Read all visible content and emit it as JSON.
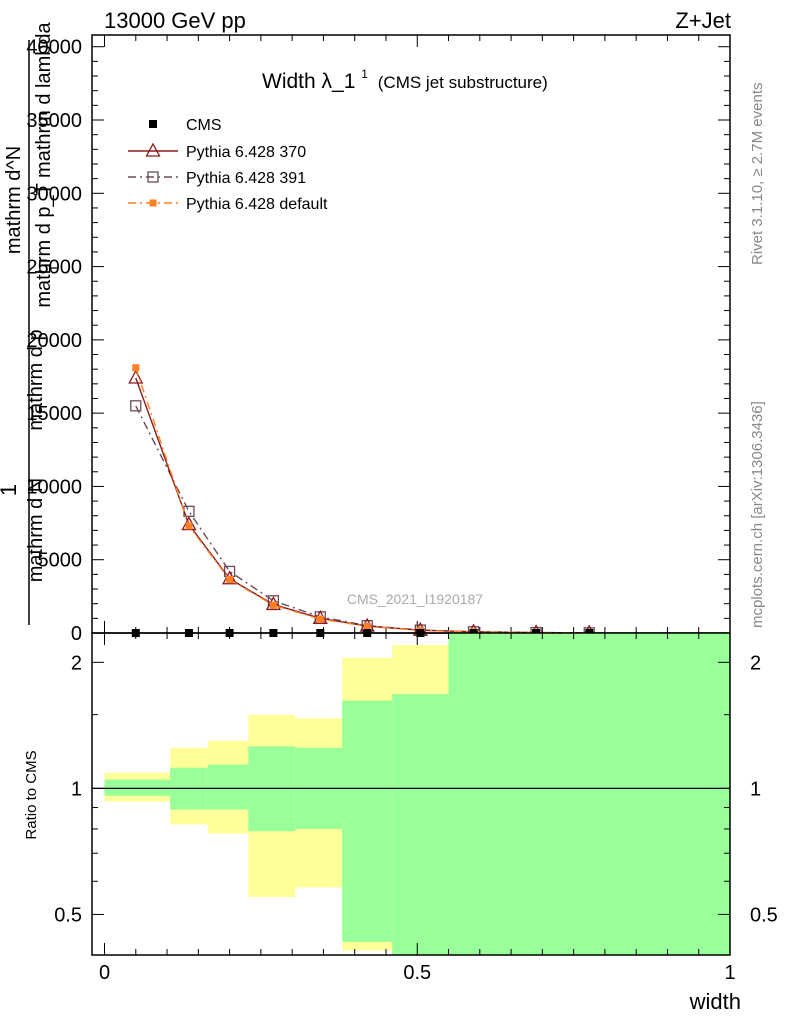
{
  "header": {
    "left": "13000 GeV pp",
    "right": "Z+Jet"
  },
  "side_labels": {
    "rivet": "Rivet 3.1.10, ≥ 2.7M events",
    "mcplots": "mcplots.cern.ch [arXiv:1306.3436]"
  },
  "watermark": "CMS_2021_I1920187",
  "colors": {
    "cms": "#000000",
    "p370": "#8b1a1a",
    "p391": "#6b4a5a",
    "pdef": "#ff7f24",
    "band_outer": "#ffff99",
    "band_inner": "#99ff99"
  },
  "chart_data": [
    {
      "type": "line",
      "title": "Width λ_1",
      "title_sup": "1",
      "title_note": "(CMS jet substructure)",
      "ylabel_main": "1",
      "ylabel_lines": [
        "mathrm d N",
        "mathrm d p",
        "mathrm d p_T mathrm d lambda"
      ],
      "ylabel_top_lines": [
        "mathrm d^N",
        "mathrm d p_T mathrm d lambda"
      ],
      "ylabel_sub": "T",
      "yticks": [
        0,
        5000,
        10000,
        15000,
        20000,
        25000,
        30000,
        35000,
        40000
      ],
      "ytick_labels": [
        "0",
        "5000",
        "10000",
        "15000",
        "20000",
        "25000",
        "30000",
        "35000",
        "40000"
      ],
      "ylim": [
        0,
        40800
      ],
      "xlim": [
        -0.02,
        1.0
      ],
      "series": [
        {
          "name": "CMS",
          "marker": "filled-square",
          "x": [
            0.05,
            0.135,
            0.2,
            0.27,
            0.345,
            0.42,
            0.505,
            0.59,
            0.69,
            0.775
          ],
          "y": [
            0,
            0,
            0,
            0,
            0,
            0,
            0,
            0,
            0,
            0
          ]
        },
        {
          "name": "Pythia 6.428 370",
          "marker": "open-triangle",
          "line": "solid",
          "x": [
            0.05,
            0.135,
            0.2,
            0.27,
            0.345,
            0.42,
            0.505,
            0.59,
            0.69,
            0.775
          ],
          "y": [
            17400,
            7400,
            3700,
            1950,
            1000,
            470,
            190,
            80,
            30,
            10
          ]
        },
        {
          "name": "Pythia 6.428 391",
          "marker": "open-square",
          "line": "dashdot",
          "x": [
            0.05,
            0.135,
            0.2,
            0.27,
            0.345,
            0.42,
            0.505,
            0.59,
            0.69,
            0.775
          ],
          "y": [
            15500,
            8300,
            4200,
            2200,
            1100,
            500,
            200,
            85,
            30,
            10
          ]
        },
        {
          "name": "Pythia 6.428 default",
          "marker": "filled-square",
          "line": "dashdot",
          "x": [
            0.05,
            0.135,
            0.2,
            0.27,
            0.345,
            0.42,
            0.505,
            0.59,
            0.69,
            0.775
          ],
          "y": [
            18100,
            7300,
            3650,
            1900,
            950,
            450,
            180,
            75,
            28,
            10
          ]
        }
      ]
    },
    {
      "type": "area",
      "ylabel": "Ratio to CMS",
      "xlabel": "width",
      "yscale": "log",
      "ylim": [
        0.4,
        2.35
      ],
      "xlim": [
        -0.02,
        1.0
      ],
      "yticks": [
        0.5,
        1,
        2
      ],
      "ytick_labels": [
        "0.5",
        "1",
        "2"
      ],
      "xticks": [
        0,
        0.5,
        1
      ],
      "xtick_labels": [
        "0",
        "0.5",
        "1"
      ],
      "reference": 1,
      "bins": [
        {
          "lo": 0.0,
          "hi": 0.105,
          "outer": [
            0.93,
            1.09
          ],
          "inner": [
            0.96,
            1.05
          ]
        },
        {
          "lo": 0.105,
          "hi": 0.165,
          "outer": [
            0.82,
            1.25
          ],
          "inner": [
            0.89,
            1.12
          ]
        },
        {
          "lo": 0.165,
          "hi": 0.23,
          "outer": [
            0.78,
            1.3
          ],
          "inner": [
            0.89,
            1.14
          ]
        },
        {
          "lo": 0.23,
          "hi": 0.305,
          "outer": [
            0.55,
            1.5
          ],
          "inner": [
            0.79,
            1.26
          ]
        },
        {
          "lo": 0.305,
          "hi": 0.38,
          "outer": [
            0.58,
            1.47
          ],
          "inner": [
            0.8,
            1.25
          ]
        },
        {
          "lo": 0.38,
          "hi": 0.46,
          "outer": [
            0.41,
            2.05
          ],
          "inner": [
            0.43,
            1.62
          ]
        },
        {
          "lo": 0.46,
          "hi": 0.55,
          "outer": [
            0.41,
            2.2
          ],
          "inner": [
            0.4,
            1.68
          ]
        },
        {
          "lo": 0.55,
          "hi": 1.0,
          "outer": [
            0.4,
            2.35
          ],
          "inner": [
            0.4,
            2.35
          ]
        }
      ]
    }
  ]
}
